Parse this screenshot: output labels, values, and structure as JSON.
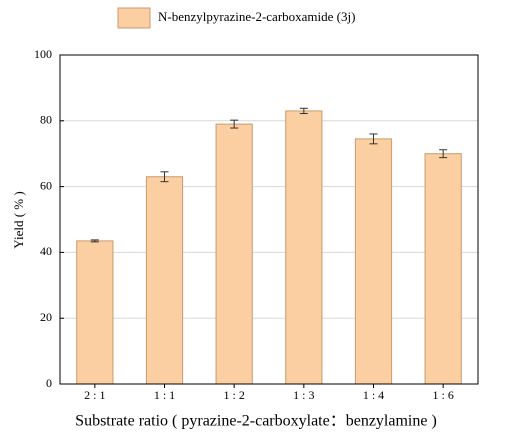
{
  "chart_data": {
    "type": "bar",
    "legend": "N-benzylpyrazine-2-carboxamide (3j)",
    "xlabel": "Substrate  ratio ( pyrazine-2-carboxylate：benzylamine )",
    "ylabel": "Yield ( % )",
    "categories": [
      "2 : 1",
      "1 : 1",
      "1 : 2",
      "1 : 3",
      "1 : 4",
      "1 : 6"
    ],
    "values": [
      43.5,
      63,
      79,
      83,
      74.5,
      70
    ],
    "errors": [
      0.3,
      1.5,
      1.2,
      0.8,
      1.5,
      1.2
    ],
    "color": "#fbcfa1",
    "ylim": [
      0,
      100
    ],
    "yticks": [
      0,
      20,
      40,
      60,
      80,
      100
    ],
    "grid": true
  }
}
